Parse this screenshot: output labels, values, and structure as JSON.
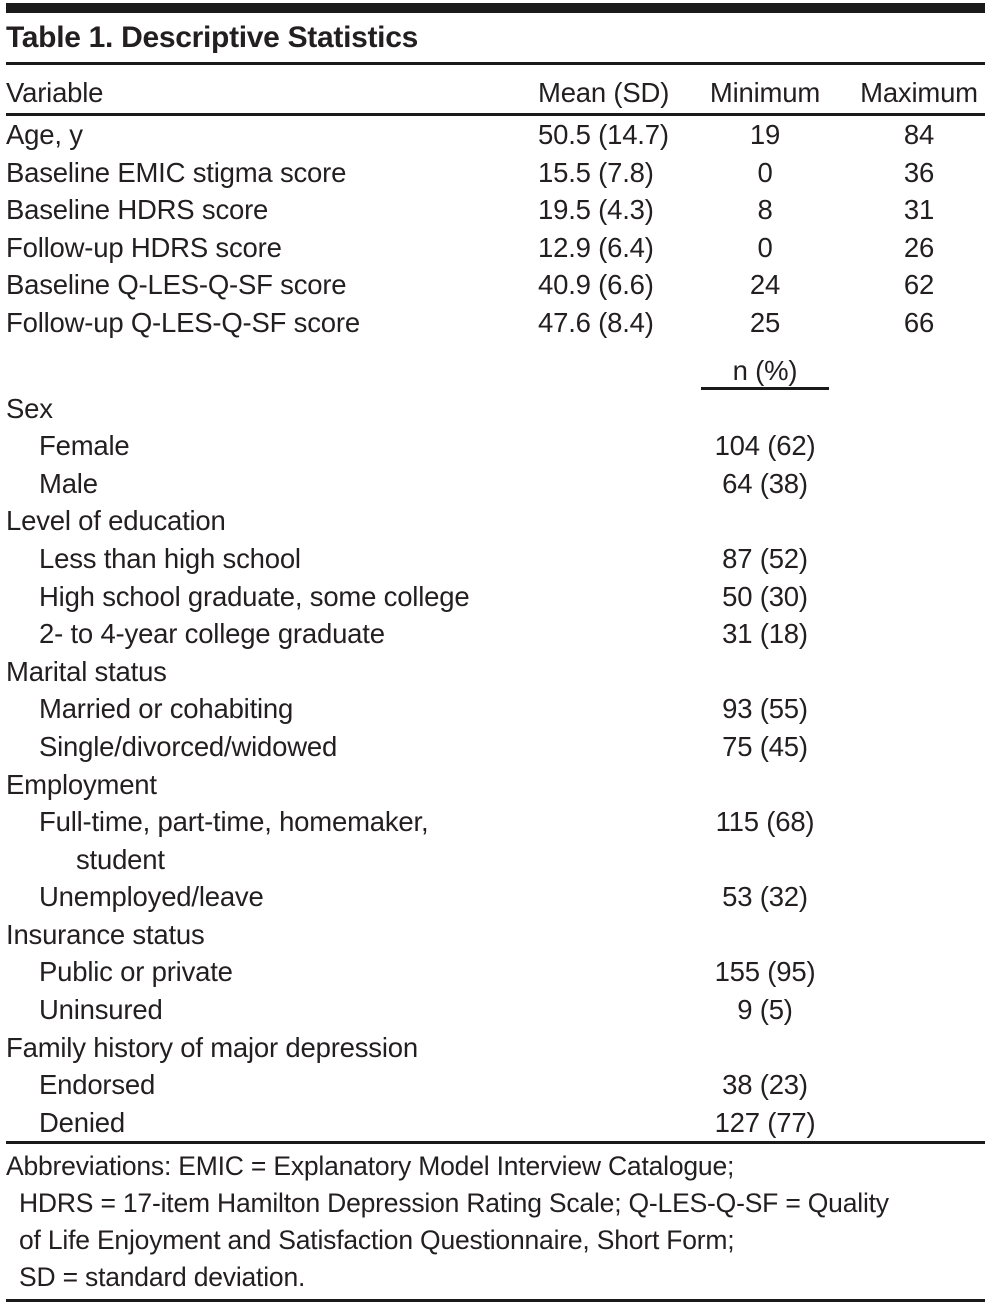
{
  "page": {
    "background_color": "#ffffff",
    "text_color": "#231f20",
    "rule_color": "#1a1a1a"
  },
  "table": {
    "title": "Table 1. Descriptive Statistics",
    "columns": [
      "Variable",
      "Mean (SD)",
      "Minimum",
      "Maximum"
    ],
    "numeric_rows": [
      {
        "variable": "Age, y",
        "mean_sd": "50.5 (14.7)",
        "minimum": "19",
        "maximum": "84"
      },
      {
        "variable": "Baseline EMIC stigma score",
        "mean_sd": "15.5 (7.8)",
        "minimum": "0",
        "maximum": "36"
      },
      {
        "variable": "Baseline HDRS score",
        "mean_sd": "19.5 (4.3)",
        "minimum": "8",
        "maximum": "31"
      },
      {
        "variable": "Follow-up HDRS score",
        "mean_sd": "12.9 (6.4)",
        "minimum": "0",
        "maximum": "26"
      },
      {
        "variable": "Baseline Q-LES-Q-SF score",
        "mean_sd": "40.9 (6.6)",
        "minimum": "24",
        "maximum": "62"
      },
      {
        "variable": "Follow-up Q-LES-Q-SF score",
        "mean_sd": "47.6 (8.4)",
        "minimum": "25",
        "maximum": "66"
      }
    ],
    "n_pct_header": "n (%)",
    "categorical_sections": [
      {
        "label": "Sex",
        "items": [
          {
            "label_lines": [
              "Female"
            ],
            "n_pct": "104 (62)"
          },
          {
            "label_lines": [
              "Male"
            ],
            "n_pct": "64 (38)"
          }
        ]
      },
      {
        "label": "Level of education",
        "items": [
          {
            "label_lines": [
              "Less than high school"
            ],
            "n_pct": "87 (52)"
          },
          {
            "label_lines": [
              "High school graduate, some college"
            ],
            "n_pct": "50 (30)"
          },
          {
            "label_lines": [
              "2- to 4-year college graduate"
            ],
            "n_pct": "31 (18)"
          }
        ]
      },
      {
        "label": "Marital status",
        "items": [
          {
            "label_lines": [
              "Married or cohabiting"
            ],
            "n_pct": "93 (55)"
          },
          {
            "label_lines": [
              "Single/divorced/widowed"
            ],
            "n_pct": "75 (45)"
          }
        ]
      },
      {
        "label": "Employment",
        "items": [
          {
            "label_lines": [
              "Full-time, part-time, homemaker,",
              "student"
            ],
            "n_pct": "115 (68)"
          },
          {
            "label_lines": [
              "Unemployed/leave"
            ],
            "n_pct": "53 (32)"
          }
        ]
      },
      {
        "label": "Insurance status",
        "items": [
          {
            "label_lines": [
              "Public or private"
            ],
            "n_pct": "155 (95)"
          },
          {
            "label_lines": [
              "Uninsured"
            ],
            "n_pct": "9 (5)"
          }
        ]
      },
      {
        "label": "Family history of major depression",
        "items": [
          {
            "label_lines": [
              "Endorsed"
            ],
            "n_pct": "38 (23)"
          },
          {
            "label_lines": [
              "Denied"
            ],
            "n_pct": "127 (77)"
          }
        ]
      }
    ],
    "footnote": {
      "lines": [
        "Abbreviations: EMIC = Explanatory Model Interview Catalogue;",
        "HDRS = 17-item Hamilton Depression Rating Scale; Q-LES-Q-SF = Quality",
        "of Life Enjoyment and Satisfaction Questionnaire, Short Form;",
        "SD = standard deviation."
      ]
    }
  }
}
